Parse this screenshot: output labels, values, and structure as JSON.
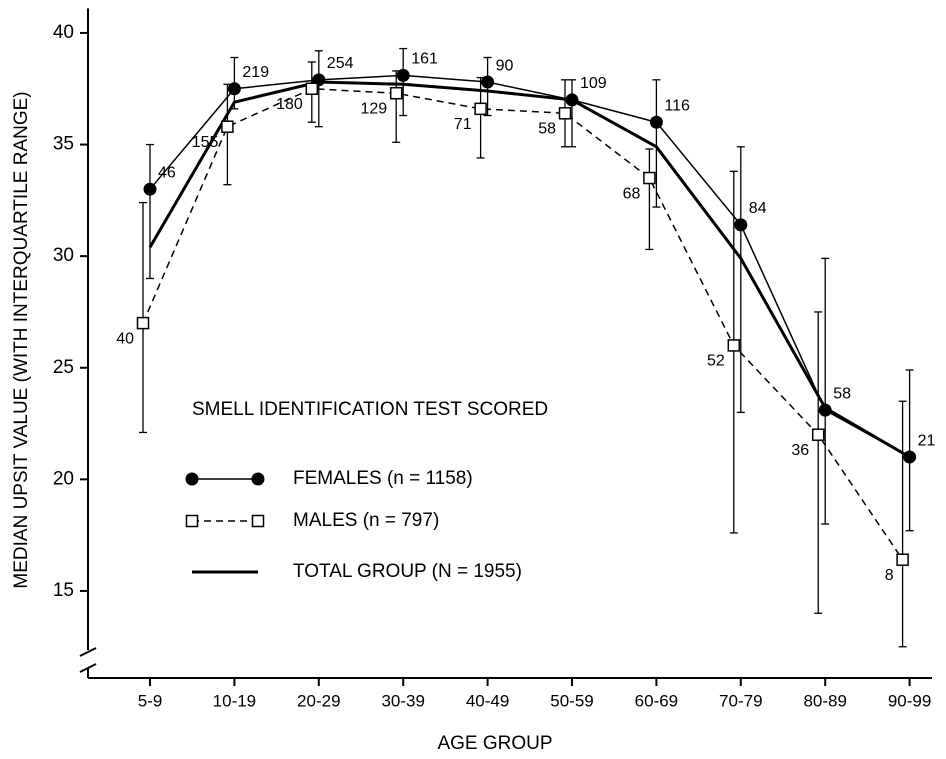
{
  "chart_data": {
    "type": "line",
    "x_label": "AGE GROUP",
    "y_label": "MEDIAN UPSIT VALUE (WITH INTERQUARTILE RANGE)",
    "legend_title": "SMELL IDENTIFICATION TEST SCORED",
    "categories": [
      "5-9",
      "10-19",
      "20-29",
      "30-39",
      "40-49",
      "50-59",
      "60-69",
      "70-79",
      "80-89",
      "90-99"
    ],
    "ylim": [
      11.1,
      41.1
    ],
    "yticks": [
      15,
      20,
      25,
      30,
      35,
      40
    ],
    "axis_break": true,
    "series": [
      {
        "name": "FEMALES  (n = 1158)",
        "color": "#000000",
        "marker": "circle",
        "line_style": "solid",
        "line_width": 1.5,
        "values": [
          33.0,
          37.5,
          37.9,
          38.1,
          37.8,
          37.0,
          36.0,
          31.4,
          23.1,
          21.0
        ],
        "low": [
          29.0,
          36.6,
          35.8,
          36.3,
          36.3,
          34.9,
          32.2,
          23.0,
          18.0,
          17.7
        ],
        "high": [
          35.0,
          38.9,
          39.2,
          39.3,
          38.9,
          37.9,
          37.9,
          34.9,
          29.9,
          24.9
        ],
        "n": [
          46,
          219,
          254,
          161,
          90,
          109,
          116,
          84,
          58,
          21
        ]
      },
      {
        "name": "MALES  (n = 797)",
        "color": "#000000",
        "marker": "square",
        "line_style": "dashed",
        "line_width": 1.5,
        "values": [
          27.0,
          35.8,
          37.5,
          37.3,
          36.6,
          36.4,
          33.5,
          26.0,
          22.0,
          16.4
        ],
        "low": [
          22.1,
          33.2,
          36.0,
          35.1,
          34.4,
          34.9,
          30.3,
          17.6,
          14.0,
          12.5
        ],
        "high": [
          32.4,
          37.7,
          38.7,
          38.3,
          38.0,
          37.9,
          34.8,
          33.8,
          27.5,
          23.5
        ],
        "n": [
          40,
          155,
          180,
          129,
          71,
          58,
          68,
          52,
          36,
          8
        ]
      },
      {
        "name": "TOTAL GROUP  (N = 1955)",
        "color": "#000000",
        "marker": "none",
        "line_style": "solid",
        "line_width": 3,
        "values": [
          30.4,
          36.9,
          37.8,
          37.7,
          37.4,
          37.0,
          34.9,
          29.9,
          23.2,
          21.0
        ]
      }
    ]
  }
}
